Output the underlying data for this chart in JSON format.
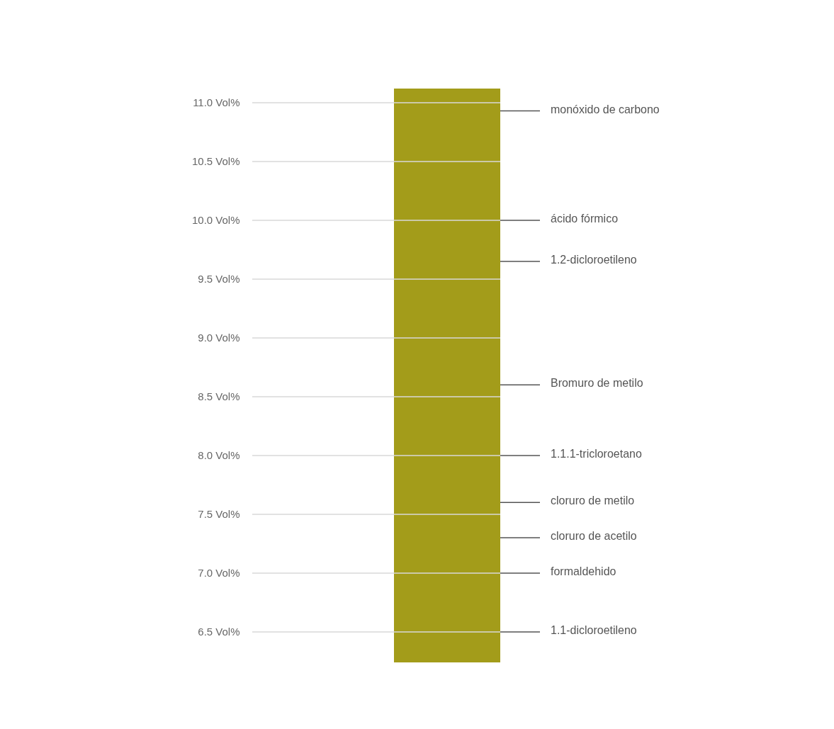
{
  "chart_data": {
    "type": "bar",
    "categories": [
      null
    ],
    "base": [
      6.24
    ],
    "values": [
      4.88
    ],
    "color": "#a39c1a",
    "ylim": [
      6.24,
      11.12
    ],
    "yticks": [
      {
        "value": 6.5,
        "label": "6.5 Vol%"
      },
      {
        "value": 7.0,
        "label": "7.0 Vol%"
      },
      {
        "value": 7.5,
        "label": "7.5 Vol%"
      },
      {
        "value": 8.0,
        "label": "8.0 Vol%"
      },
      {
        "value": 8.5,
        "label": "8.5 Vol%"
      },
      {
        "value": 9.0,
        "label": "9.0 Vol%"
      },
      {
        "value": 9.5,
        "label": "9.5 Vol%"
      },
      {
        "value": 10.0,
        "label": "10.0 Vol%"
      },
      {
        "value": 10.5,
        "label": "10.5 Vol%"
      },
      {
        "value": 11.0,
        "label": "11.0 Vol%"
      }
    ],
    "grid": "y",
    "ref_lines": [
      {
        "axis": "y",
        "value": 10.93,
        "label": "monóxido de carbono"
      },
      {
        "axis": "y",
        "value": 10.0,
        "label": "ácido fórmico"
      },
      {
        "axis": "y",
        "value": 9.65,
        "label": "1.2-dicloroetileno"
      },
      {
        "axis": "y",
        "value": 8.6,
        "label": "Bromuro de metilo"
      },
      {
        "axis": "y",
        "value": 8.0,
        "label": "1.1.1-tricloroetano"
      },
      {
        "axis": "y",
        "value": 7.6,
        "label": "cloruro de metilo"
      },
      {
        "axis": "y",
        "value": 7.3,
        "label": "cloruro de acetilo"
      },
      {
        "axis": "y",
        "value": 7.0,
        "label": "formaldehido"
      },
      {
        "axis": "y",
        "value": 6.5,
        "label": "1.1-dicloroetileno"
      }
    ]
  }
}
